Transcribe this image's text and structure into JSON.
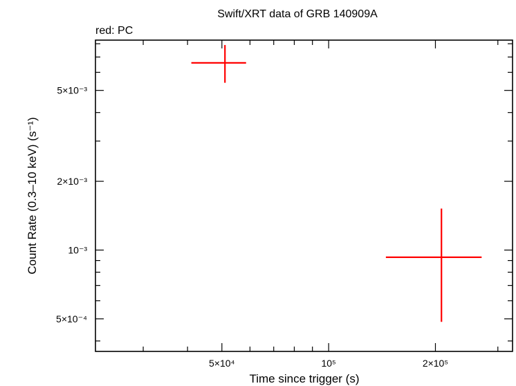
{
  "chart_data": {
    "type": "scatter",
    "title": "Swift/XRT data of GRB 140909A",
    "subtitle": "red: PC",
    "xlabel": "Time since trigger (s)",
    "ylabel": "Count Rate (0.3–10 keV) (s⁻¹)",
    "x_scale": "log",
    "y_scale": "log",
    "xlim": [
      22000,
      330000
    ],
    "ylim": [
      0.00036,
      0.0083
    ],
    "x_ticks": [
      {
        "value": 50000,
        "label": "5×10⁴"
      },
      {
        "value": 100000,
        "label": "10⁵"
      },
      {
        "value": 200000,
        "label": "2×10⁵"
      }
    ],
    "y_ticks": [
      {
        "value": 0.0005,
        "label": "5×10⁻⁴"
      },
      {
        "value": 0.001,
        "label": "10⁻³"
      },
      {
        "value": 0.002,
        "label": "2×10⁻³"
      },
      {
        "value": 0.005,
        "label": "5×10⁻³"
      }
    ],
    "series": [
      {
        "color": "#ff0000",
        "points": [
          {
            "x": 51000,
            "x_lo": 41000,
            "x_hi": 58500,
            "y": 0.0066,
            "y_lo": 0.0054,
            "y_hi": 0.0079
          },
          {
            "x": 208000,
            "x_lo": 145000,
            "x_hi": 270000,
            "y": 0.00093,
            "y_lo": 0.000485,
            "y_hi": 0.00152
          }
        ]
      }
    ]
  }
}
